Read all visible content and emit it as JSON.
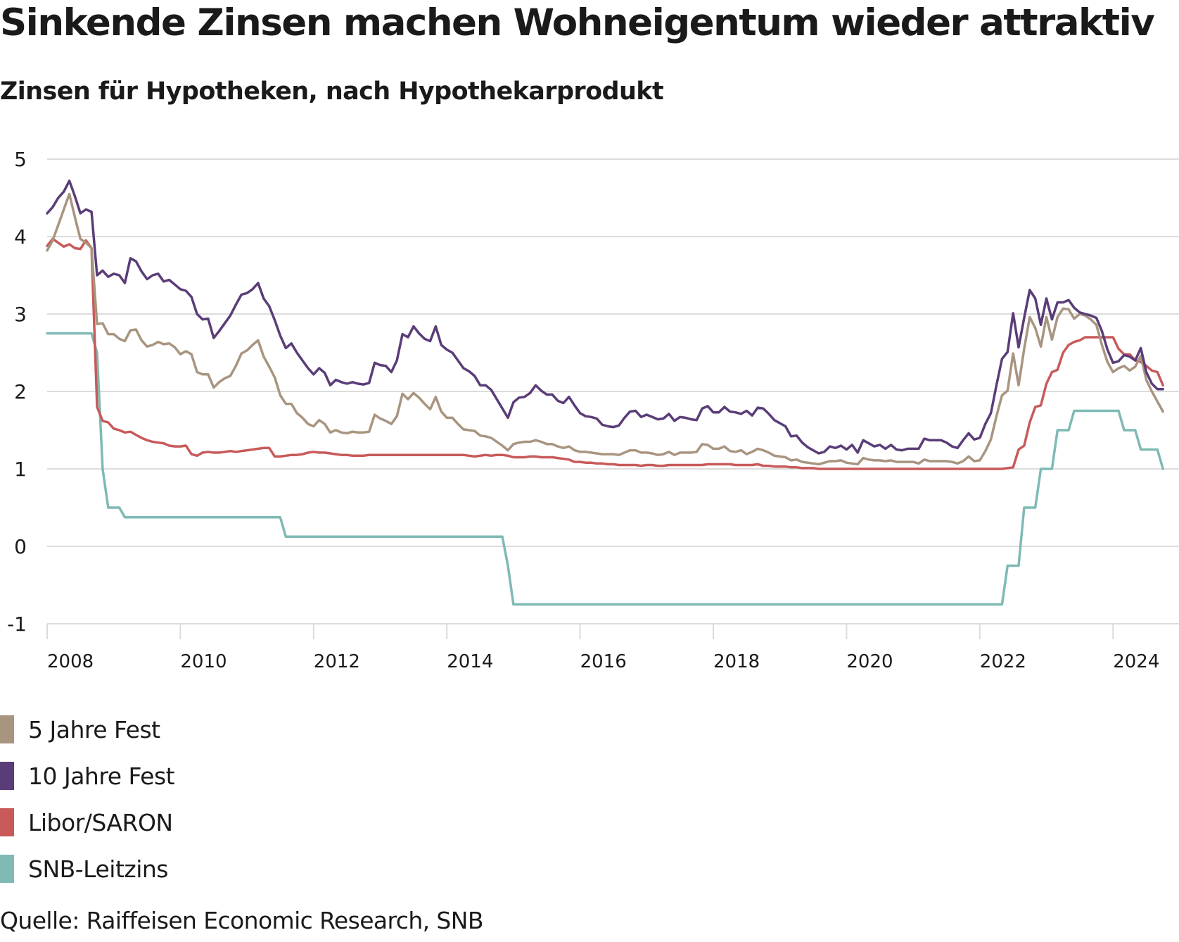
{
  "header": {
    "title": "Sinkende Zinsen machen Wohneigentum wieder attraktiv",
    "subtitle": "Zinsen für Hypotheken, nach Hypothekarprodukt"
  },
  "source": "Quelle: Raiffeisen Economic Research, SNB",
  "chart_data": {
    "type": "line",
    "title": "Zinsen für Hypotheken, nach Hypothekarprodukt",
    "xlabel": "",
    "ylabel": "",
    "frequency": "monthly",
    "x_start": "2008-01",
    "x_end": "2024-10",
    "xlim": [
      2008,
      2024.83
    ],
    "ylim": [
      -1,
      5
    ],
    "yticks": [
      -1,
      0,
      1,
      2,
      3,
      4,
      5
    ],
    "ytick_labels": [
      "-1",
      "0",
      "1",
      "2",
      "3",
      "4",
      "5"
    ],
    "xticks": [
      2008,
      2010,
      2012,
      2014,
      2016,
      2018,
      2020,
      2022,
      2024
    ],
    "xtick_labels": [
      "2008",
      "2010",
      "2012",
      "2014",
      "2016",
      "2018",
      "2020",
      "2022",
      "2024"
    ],
    "grid": true,
    "legend_position": "bottom-left",
    "series": [
      {
        "name": "5 Jahre Fest",
        "color": "#a89580",
        "values": [
          3.82,
          3.95,
          4.15,
          4.35,
          4.55,
          4.25,
          3.97,
          3.92,
          3.85,
          2.87,
          2.88,
          2.74,
          2.74,
          2.68,
          2.65,
          2.79,
          2.8,
          2.66,
          2.58,
          2.6,
          2.64,
          2.61,
          2.62,
          2.57,
          2.48,
          2.52,
          2.48,
          2.25,
          2.22,
          2.22,
          2.05,
          2.12,
          2.17,
          2.2,
          2.33,
          2.49,
          2.53,
          2.6,
          2.66,
          2.45,
          2.32,
          2.18,
          1.95,
          1.84,
          1.84,
          1.72,
          1.66,
          1.58,
          1.55,
          1.63,
          1.58,
          1.47,
          1.5,
          1.47,
          1.46,
          1.48,
          1.47,
          1.47,
          1.48,
          1.7,
          1.65,
          1.62,
          1.58,
          1.68,
          1.97,
          1.9,
          1.98,
          1.92,
          1.84,
          1.77,
          1.93,
          1.74,
          1.66,
          1.66,
          1.58,
          1.51,
          1.5,
          1.49,
          1.43,
          1.42,
          1.4,
          1.35,
          1.3,
          1.24,
          1.32,
          1.34,
          1.35,
          1.35,
          1.37,
          1.35,
          1.32,
          1.32,
          1.29,
          1.27,
          1.29,
          1.24,
          1.22,
          1.22,
          1.21,
          1.2,
          1.19,
          1.19,
          1.19,
          1.18,
          1.21,
          1.24,
          1.24,
          1.21,
          1.21,
          1.2,
          1.18,
          1.19,
          1.22,
          1.18,
          1.21,
          1.21,
          1.21,
          1.22,
          1.32,
          1.31,
          1.26,
          1.26,
          1.29,
          1.23,
          1.22,
          1.24,
          1.19,
          1.22,
          1.26,
          1.24,
          1.21,
          1.17,
          1.16,
          1.15,
          1.11,
          1.12,
          1.09,
          1.08,
          1.07,
          1.06,
          1.08,
          1.1,
          1.1,
          1.11,
          1.08,
          1.07,
          1.06,
          1.14,
          1.12,
          1.11,
          1.11,
          1.1,
          1.11,
          1.09,
          1.09,
          1.09,
          1.09,
          1.07,
          1.12,
          1.1,
          1.1,
          1.1,
          1.1,
          1.09,
          1.07,
          1.1,
          1.16,
          1.1,
          1.11,
          1.23,
          1.38,
          1.68,
          1.95,
          2.01,
          2.49,
          2.08,
          2.55,
          2.96,
          2.82,
          2.58,
          2.96,
          2.67,
          2.96,
          3.07,
          3.06,
          2.94,
          3.0,
          2.98,
          2.93,
          2.86,
          2.6,
          2.38,
          2.25,
          2.3,
          2.33,
          2.27,
          2.32,
          2.46,
          2.15,
          2.0,
          1.87,
          1.74
        ]
      },
      {
        "name": "10 Jahre Fest",
        "color": "#5a3d78",
        "values": [
          4.3,
          4.38,
          4.5,
          4.58,
          4.72,
          4.52,
          4.3,
          4.35,
          4.32,
          3.5,
          3.56,
          3.48,
          3.52,
          3.5,
          3.4,
          3.72,
          3.68,
          3.55,
          3.45,
          3.5,
          3.52,
          3.42,
          3.44,
          3.38,
          3.32,
          3.3,
          3.22,
          3.0,
          2.93,
          2.94,
          2.69,
          2.78,
          2.88,
          2.98,
          3.12,
          3.25,
          3.27,
          3.32,
          3.4,
          3.2,
          3.1,
          2.92,
          2.72,
          2.56,
          2.62,
          2.5,
          2.4,
          2.3,
          2.22,
          2.3,
          2.24,
          2.08,
          2.15,
          2.12,
          2.1,
          2.12,
          2.1,
          2.09,
          2.11,
          2.37,
          2.34,
          2.33,
          2.25,
          2.4,
          2.74,
          2.7,
          2.84,
          2.75,
          2.68,
          2.65,
          2.84,
          2.6,
          2.54,
          2.5,
          2.4,
          2.3,
          2.26,
          2.2,
          2.08,
          2.08,
          2.02,
          1.9,
          1.78,
          1.66,
          1.86,
          1.92,
          1.93,
          1.98,
          2.08,
          2.01,
          1.96,
          1.96,
          1.88,
          1.85,
          1.93,
          1.82,
          1.72,
          1.68,
          1.67,
          1.65,
          1.57,
          1.55,
          1.54,
          1.56,
          1.66,
          1.74,
          1.75,
          1.67,
          1.7,
          1.67,
          1.64,
          1.65,
          1.71,
          1.62,
          1.67,
          1.66,
          1.64,
          1.63,
          1.78,
          1.81,
          1.73,
          1.73,
          1.8,
          1.74,
          1.73,
          1.71,
          1.75,
          1.69,
          1.79,
          1.78,
          1.71,
          1.63,
          1.59,
          1.55,
          1.42,
          1.43,
          1.34,
          1.28,
          1.24,
          1.2,
          1.22,
          1.29,
          1.27,
          1.3,
          1.25,
          1.31,
          1.21,
          1.37,
          1.33,
          1.29,
          1.31,
          1.26,
          1.31,
          1.25,
          1.24,
          1.26,
          1.26,
          1.26,
          1.39,
          1.37,
          1.37,
          1.37,
          1.34,
          1.29,
          1.27,
          1.37,
          1.46,
          1.38,
          1.4,
          1.58,
          1.72,
          2.08,
          2.42,
          2.51,
          3.01,
          2.57,
          2.95,
          3.31,
          3.2,
          2.86,
          3.2,
          2.93,
          3.15,
          3.15,
          3.18,
          3.08,
          3.02,
          3.0,
          2.98,
          2.95,
          2.78,
          2.54,
          2.37,
          2.39,
          2.47,
          2.45,
          2.4,
          2.56,
          2.25,
          2.1,
          2.03,
          2.03
        ]
      },
      {
        "name": "Libor/SARON",
        "color": "#c85a5a",
        "values": [
          3.88,
          3.97,
          3.92,
          3.87,
          3.9,
          3.85,
          3.84,
          3.95,
          3.85,
          1.8,
          1.62,
          1.6,
          1.52,
          1.5,
          1.47,
          1.48,
          1.44,
          1.4,
          1.37,
          1.35,
          1.34,
          1.33,
          1.3,
          1.29,
          1.29,
          1.3,
          1.19,
          1.17,
          1.21,
          1.22,
          1.21,
          1.21,
          1.22,
          1.23,
          1.22,
          1.23,
          1.24,
          1.25,
          1.26,
          1.27,
          1.27,
          1.16,
          1.16,
          1.17,
          1.18,
          1.18,
          1.19,
          1.21,
          1.22,
          1.21,
          1.21,
          1.2,
          1.19,
          1.18,
          1.18,
          1.17,
          1.17,
          1.17,
          1.18,
          1.18,
          1.18,
          1.18,
          1.18,
          1.18,
          1.18,
          1.18,
          1.18,
          1.18,
          1.18,
          1.18,
          1.18,
          1.18,
          1.18,
          1.18,
          1.18,
          1.18,
          1.17,
          1.16,
          1.17,
          1.18,
          1.17,
          1.18,
          1.18,
          1.17,
          1.15,
          1.15,
          1.15,
          1.16,
          1.16,
          1.15,
          1.15,
          1.15,
          1.14,
          1.13,
          1.12,
          1.09,
          1.09,
          1.08,
          1.08,
          1.07,
          1.07,
          1.06,
          1.06,
          1.05,
          1.05,
          1.05,
          1.05,
          1.04,
          1.05,
          1.05,
          1.04,
          1.04,
          1.05,
          1.05,
          1.05,
          1.05,
          1.05,
          1.05,
          1.05,
          1.06,
          1.06,
          1.06,
          1.06,
          1.06,
          1.05,
          1.05,
          1.05,
          1.05,
          1.06,
          1.04,
          1.04,
          1.03,
          1.03,
          1.03,
          1.02,
          1.02,
          1.01,
          1.01,
          1.01,
          1.0,
          1.0,
          1.0,
          1.0,
          1.0,
          1.0,
          1.0,
          1.0,
          1.0,
          1.0,
          1.0,
          1.0,
          1.0,
          1.0,
          1.0,
          1.0,
          1.0,
          1.0,
          1.0,
          1.0,
          1.0,
          1.0,
          1.0,
          1.0,
          1.0,
          1.0,
          1.0,
          1.0,
          1.0,
          1.0,
          1.0,
          1.0,
          1.0,
          1.0,
          1.01,
          1.02,
          1.25,
          1.3,
          1.6,
          1.8,
          1.82,
          2.1,
          2.25,
          2.28,
          2.5,
          2.6,
          2.64,
          2.66,
          2.7,
          2.7,
          2.7,
          2.7,
          2.7,
          2.7,
          2.55,
          2.48,
          2.48,
          2.4,
          2.38,
          2.33,
          2.27,
          2.25,
          2.08
        ]
      },
      {
        "name": "SNB-Leitzins",
        "color": "#7fbab4",
        "values": [
          2.75,
          2.75,
          2.75,
          2.75,
          2.75,
          2.75,
          2.75,
          2.75,
          2.75,
          2.5,
          1.0,
          0.5,
          0.5,
          0.5,
          0.375,
          0.375,
          0.375,
          0.375,
          0.375,
          0.375,
          0.375,
          0.375,
          0.375,
          0.375,
          0.375,
          0.375,
          0.375,
          0.375,
          0.375,
          0.375,
          0.375,
          0.375,
          0.375,
          0.375,
          0.375,
          0.375,
          0.375,
          0.375,
          0.375,
          0.375,
          0.375,
          0.375,
          0.375,
          0.125,
          0.125,
          0.125,
          0.125,
          0.125,
          0.125,
          0.125,
          0.125,
          0.125,
          0.125,
          0.125,
          0.125,
          0.125,
          0.125,
          0.125,
          0.125,
          0.125,
          0.125,
          0.125,
          0.125,
          0.125,
          0.125,
          0.125,
          0.125,
          0.125,
          0.125,
          0.125,
          0.125,
          0.125,
          0.125,
          0.125,
          0.125,
          0.125,
          0.125,
          0.125,
          0.125,
          0.125,
          0.125,
          0.125,
          0.125,
          -0.25,
          -0.75,
          -0.75,
          -0.75,
          -0.75,
          -0.75,
          -0.75,
          -0.75,
          -0.75,
          -0.75,
          -0.75,
          -0.75,
          -0.75,
          -0.75,
          -0.75,
          -0.75,
          -0.75,
          -0.75,
          -0.75,
          -0.75,
          -0.75,
          -0.75,
          -0.75,
          -0.75,
          -0.75,
          -0.75,
          -0.75,
          -0.75,
          -0.75,
          -0.75,
          -0.75,
          -0.75,
          -0.75,
          -0.75,
          -0.75,
          -0.75,
          -0.75,
          -0.75,
          -0.75,
          -0.75,
          -0.75,
          -0.75,
          -0.75,
          -0.75,
          -0.75,
          -0.75,
          -0.75,
          -0.75,
          -0.75,
          -0.75,
          -0.75,
          -0.75,
          -0.75,
          -0.75,
          -0.75,
          -0.75,
          -0.75,
          -0.75,
          -0.75,
          -0.75,
          -0.75,
          -0.75,
          -0.75,
          -0.75,
          -0.75,
          -0.75,
          -0.75,
          -0.75,
          -0.75,
          -0.75,
          -0.75,
          -0.75,
          -0.75,
          -0.75,
          -0.75,
          -0.75,
          -0.75,
          -0.75,
          -0.75,
          -0.75,
          -0.75,
          -0.75,
          -0.75,
          -0.75,
          -0.75,
          -0.75,
          -0.75,
          -0.75,
          -0.75,
          -0.75,
          -0.25,
          -0.25,
          -0.25,
          0.5,
          0.5,
          0.5,
          1.0,
          1.0,
          1.0,
          1.5,
          1.5,
          1.5,
          1.75,
          1.75,
          1.75,
          1.75,
          1.75,
          1.75,
          1.75,
          1.75,
          1.75,
          1.5,
          1.5,
          1.5,
          1.25,
          1.25,
          1.25,
          1.25,
          1.0
        ]
      }
    ]
  }
}
